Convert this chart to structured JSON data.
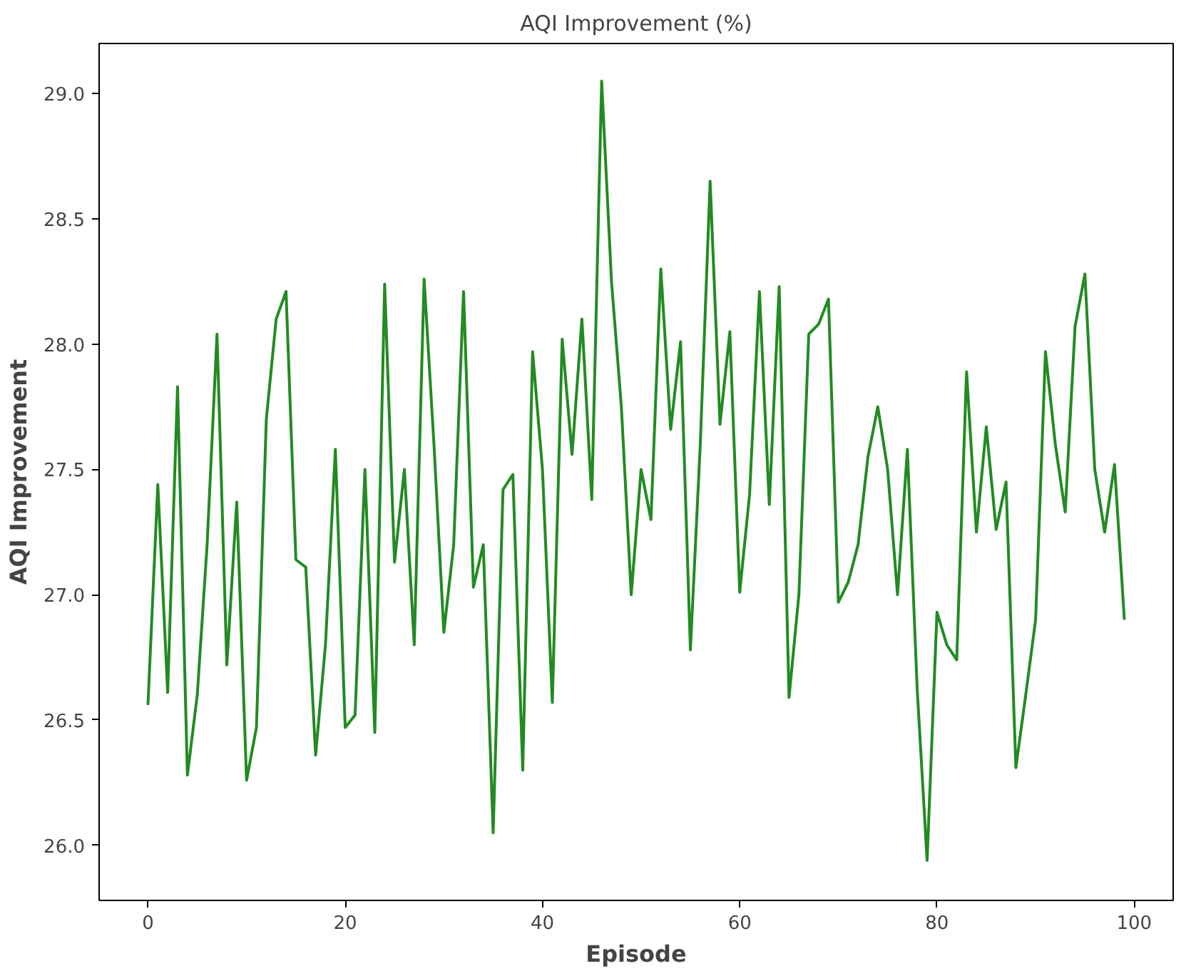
{
  "chart_data": {
    "type": "line",
    "title": "AQI Improvement (%)",
    "xlabel": "Episode",
    "ylabel": "AQI Improvement",
    "x": [
      0,
      1,
      2,
      3,
      4,
      5,
      6,
      7,
      8,
      9,
      10,
      11,
      12,
      13,
      14,
      15,
      16,
      17,
      18,
      19,
      20,
      21,
      22,
      23,
      24,
      25,
      26,
      27,
      28,
      29,
      30,
      31,
      32,
      33,
      34,
      35,
      36,
      37,
      38,
      39,
      40,
      41,
      42,
      43,
      44,
      45,
      46,
      47,
      48,
      49,
      50,
      51,
      52,
      53,
      54,
      55,
      56,
      57,
      58,
      59,
      60,
      61,
      62,
      63,
      64,
      65,
      66,
      67,
      68,
      69,
      70,
      71,
      72,
      73,
      74,
      75,
      76,
      77,
      78,
      79,
      80,
      81,
      82,
      83,
      84,
      85,
      86,
      87,
      88,
      89,
      90,
      91,
      92,
      93,
      94,
      95,
      96,
      97,
      98,
      99
    ],
    "series": [
      {
        "color": "#228b22",
        "values": [
          26.56,
          27.44,
          26.61,
          27.83,
          26.28,
          26.6,
          27.2,
          28.04,
          26.72,
          27.37,
          26.26,
          26.47,
          27.7,
          28.1,
          28.21,
          27.14,
          27.11,
          26.36,
          26.8,
          27.58,
          26.47,
          26.52,
          27.5,
          26.45,
          28.24,
          27.13,
          27.5,
          26.8,
          28.26,
          27.6,
          26.85,
          27.2,
          28.21,
          27.03,
          27.2,
          26.05,
          27.42,
          27.48,
          26.3,
          27.97,
          27.5,
          26.57,
          28.02,
          27.56,
          28.1,
          27.38,
          29.05,
          28.25,
          27.75,
          27.0,
          27.5,
          27.3,
          28.3,
          27.66,
          28.01,
          26.78,
          27.6,
          28.65,
          27.68,
          28.05,
          27.01,
          27.4,
          28.21,
          27.36,
          28.23,
          26.59,
          27.0,
          28.04,
          28.08,
          28.18,
          26.97,
          27.05,
          27.2,
          27.55,
          27.75,
          27.5,
          27.0,
          27.58,
          26.62,
          25.94,
          26.93,
          26.8,
          26.74,
          27.89,
          27.25,
          27.67,
          27.26,
          27.45,
          26.31,
          26.6,
          26.9,
          27.97,
          27.6,
          27.33,
          28.07,
          28.28,
          27.5,
          27.25,
          27.52,
          26.9
        ]
      }
    ],
    "xlim": [
      -4.95,
      103.95
    ],
    "ylim": [
      25.78,
      29.2
    ],
    "xticks": [
      0,
      20,
      40,
      60,
      80,
      100
    ],
    "yticks": [
      {
        "value": 26,
        "label": "26.0"
      },
      {
        "value": 26.5,
        "label": "26.5"
      },
      {
        "value": 27,
        "label": "27.0"
      },
      {
        "value": 27.5,
        "label": "27.5"
      },
      {
        "value": 28,
        "label": "28.0"
      },
      {
        "value": 28.5,
        "label": "28.5"
      },
      {
        "value": 29,
        "label": "29.0"
      }
    ],
    "grid": false,
    "line_style": "solid"
  }
}
